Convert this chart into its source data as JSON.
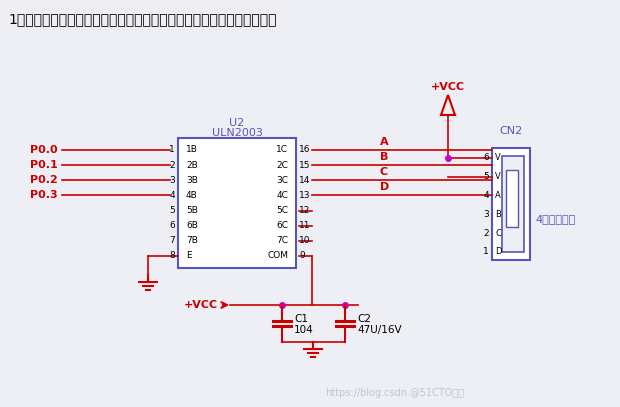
{
  "background_color": "#eeeef5",
  "title_text": "1、如果不考虑数据锁存功能，步进电机的扩展板电路可以简化为下图：",
  "watermark": "https://blog.csdn.@51CTO博客",
  "ic_label1": "U2",
  "ic_label2": "ULN2003",
  "cn2_label": "CN2",
  "motor_label": "4相步进电机",
  "c1_label": "C1",
  "c1_val": "104",
  "c2_label": "C2",
  "c2_val": "47U/16V",
  "vcc_color": "#cc0000",
  "line_color": "#cc0000",
  "ic_border_color": "#5555bb",
  "ic_fill_color": "#ffffff",
  "cn2_border_color": "#5555bb",
  "cn2_fill_color": "#ffffff",
  "label_color_red": "#cc0000",
  "label_color_blue": "#5555bb",
  "text_color_black": "#000000",
  "dot_color": "#cc00cc",
  "pin_inputs": [
    "P0.0",
    "P0.1",
    "P0.2",
    "P0.3"
  ],
  "pin_left_labels": [
    "1B",
    "2B",
    "3B",
    "4B",
    "5B",
    "6B",
    "7B",
    "E"
  ],
  "pin_right_labels": [
    "1C",
    "2C",
    "3C",
    "4C",
    "5C",
    "6C",
    "7C",
    "COM"
  ],
  "pin_right_nums": [
    "16",
    "15",
    "14",
    "13",
    "12",
    "11",
    "10",
    "9"
  ],
  "pin_out_labels": [
    "A",
    "B",
    "C",
    "D"
  ],
  "cn2_side_labels": [
    "V",
    "V",
    "A",
    "B",
    "C",
    "D"
  ]
}
